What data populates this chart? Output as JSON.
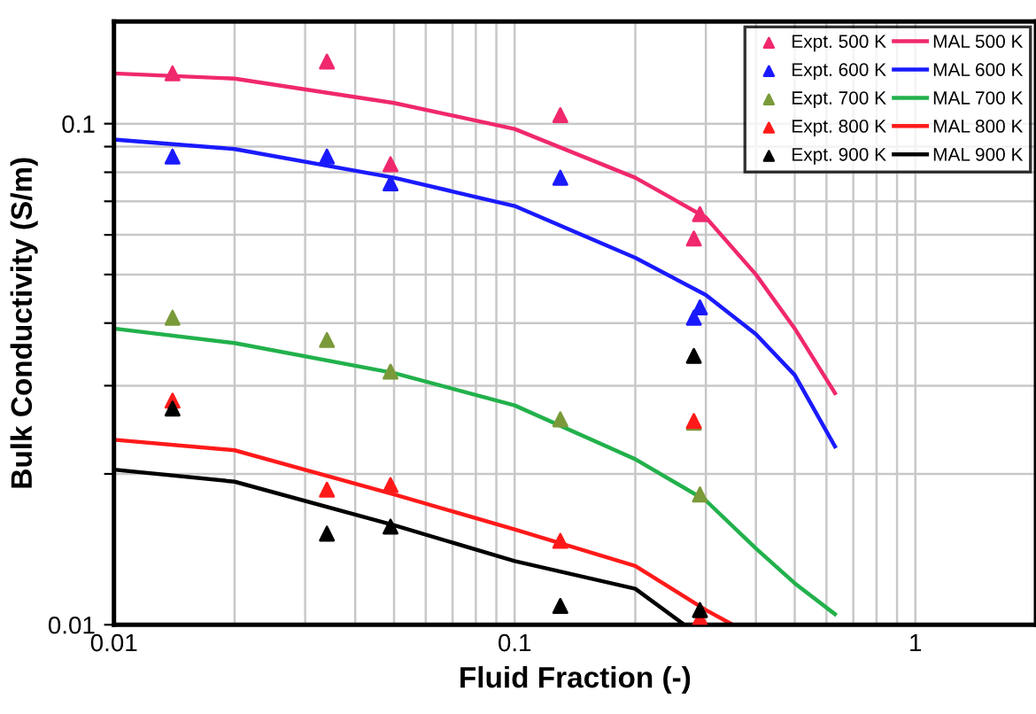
{
  "chart_data": {
    "type": "scatter",
    "xlabel": "Fluid Fraction (-)",
    "ylabel": "Bulk Conductivity (S/m)",
    "log": "xy",
    "xlim": [
      0.01,
      2
    ],
    "ylim": [
      0.01,
      0.16
    ],
    "xticks": [
      0.01,
      {
        "value": 0.02,
        "label": null
      },
      {
        "value": 0.03,
        "label": null
      },
      {
        "value": 0.04,
        "label": null
      },
      {
        "value": 0.05,
        "label": null
      },
      {
        "value": 0.06,
        "label": null
      },
      {
        "value": 0.07,
        "label": null
      },
      {
        "value": 0.08,
        "label": null
      },
      {
        "value": 0.09,
        "label": null
      },
      0.1,
      {
        "value": 0.2,
        "label": null
      },
      {
        "value": 0.3,
        "label": null
      },
      {
        "value": 0.4,
        "label": null
      },
      {
        "value": 0.5,
        "label": null
      },
      {
        "value": 0.6,
        "label": null
      },
      {
        "value": 0.7,
        "label": null
      },
      {
        "value": 0.8,
        "label": null
      },
      {
        "value": 0.9,
        "label": null
      },
      1,
      {
        "value": 2,
        "label": null
      }
    ],
    "yticks": [
      0.01,
      {
        "value": 0.02,
        "label": null
      },
      {
        "value": 0.03,
        "label": null
      },
      {
        "value": 0.04,
        "label": null
      },
      {
        "value": 0.05,
        "label": null
      },
      {
        "value": 0.06,
        "label": null
      },
      {
        "value": 0.07,
        "label": null
      },
      {
        "value": 0.08,
        "label": null
      },
      {
        "value": 0.09,
        "label": null
      },
      0.1
    ],
    "grid": true,
    "legend": "top right",
    "series": [
      {
        "name": "Expt. 500 K",
        "marker": "triangle",
        "color": "#f0286e",
        "x": [
          0.014,
          0.034,
          0.049,
          0.13,
          0.28,
          0.29
        ],
        "values": [
          0.126,
          0.133,
          0.083,
          0.104,
          0.059,
          0.066
        ]
      },
      {
        "name": "Expt. 600 K",
        "marker": "triangle",
        "color": "#1a1aff",
        "x": [
          0.014,
          0.034,
          0.049,
          0.13,
          0.28,
          0.29
        ],
        "values": [
          0.086,
          0.086,
          0.076,
          0.078,
          0.041,
          0.043
        ]
      },
      {
        "name": "Expt. 700 K",
        "marker": "triangle",
        "color": "#7a9a3a",
        "x": [
          0.014,
          0.034,
          0.049,
          0.13,
          0.28,
          0.29
        ],
        "values": [
          0.041,
          0.037,
          0.032,
          0.0257,
          0.0253,
          0.0182
        ]
      },
      {
        "name": "Expt. 800 K",
        "marker": "triangle",
        "color": "#ff1a1a",
        "x": [
          0.014,
          0.034,
          0.049,
          0.13,
          0.28,
          0.29
        ],
        "values": [
          0.028,
          0.0186,
          0.019,
          0.0147,
          0.0255,
          0.0103
        ]
      },
      {
        "name": "Expt. 900 K",
        "marker": "triangle",
        "color": "#000000",
        "x": [
          0.014,
          0.034,
          0.049,
          0.13,
          0.28,
          0.29
        ],
        "values": [
          0.027,
          0.0152,
          0.0157,
          0.0109,
          0.0344,
          0.0107
        ]
      },
      {
        "name": "MAL 500 K",
        "type": "line",
        "marker": "none",
        "color": "#f0286e",
        "x": [
          0.01,
          0.02,
          0.05,
          0.1,
          0.2,
          0.3,
          0.4,
          0.5,
          0.63
        ],
        "values": [
          0.126,
          0.123,
          0.11,
          0.0976,
          0.078,
          0.065,
          0.05,
          0.039,
          0.029
        ]
      },
      {
        "name": "MAL 600 K",
        "type": "line",
        "marker": "none",
        "color": "#1a1aff",
        "x": [
          0.01,
          0.02,
          0.05,
          0.1,
          0.2,
          0.3,
          0.4,
          0.5,
          0.63
        ],
        "values": [
          0.093,
          0.089,
          0.078,
          0.0685,
          0.054,
          0.0455,
          0.038,
          0.0315,
          0.0227
        ]
      },
      {
        "name": "MAL 700 K",
        "type": "line",
        "marker": "none",
        "color": "#22b14c",
        "x": [
          0.01,
          0.02,
          0.05,
          0.1,
          0.2,
          0.3,
          0.4,
          0.5,
          0.63
        ],
        "values": [
          0.039,
          0.0365,
          0.0318,
          0.0274,
          0.0214,
          0.0177,
          0.0142,
          0.0121,
          0.0105
        ]
      },
      {
        "name": "MAL 800 K",
        "type": "line",
        "marker": "none",
        "color": "#ff1a1a",
        "x": [
          0.01,
          0.02,
          0.05,
          0.1,
          0.2,
          0.3,
          0.35
        ],
        "values": [
          0.0234,
          0.0223,
          0.0182,
          0.0155,
          0.0131,
          0.0107,
          0.01
        ]
      },
      {
        "name": "MAL 900 K",
        "type": "line",
        "marker": "none",
        "color": "#000000",
        "x": [
          0.01,
          0.02,
          0.05,
          0.1,
          0.2,
          0.265
        ],
        "values": [
          0.0204,
          0.0193,
          0.0158,
          0.0134,
          0.0118,
          0.01
        ]
      }
    ]
  }
}
